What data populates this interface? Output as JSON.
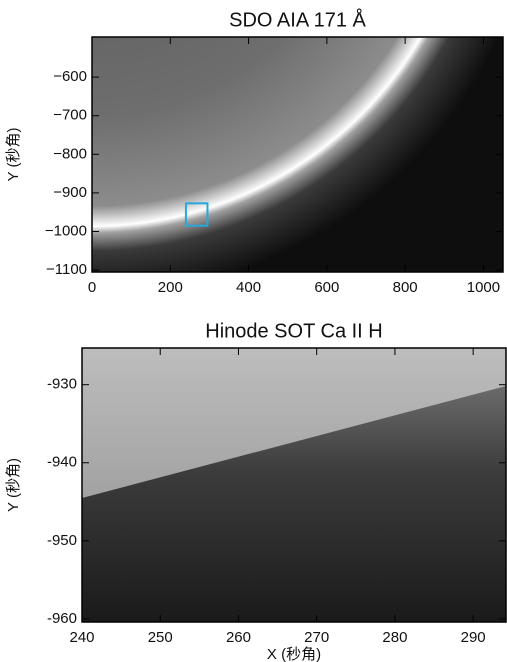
{
  "chart_data": [
    {
      "type": "image",
      "title": "SDO AIA 171 Å",
      "ylabel": "Y (秒角)",
      "xlim": [
        0,
        1050
      ],
      "ylim": [
        -1105,
        -496
      ],
      "xticks": [
        0,
        200,
        400,
        600,
        800,
        1000
      ],
      "yticks": [
        {
          "value": -600,
          "label": "−600"
        },
        {
          "value": -700,
          "label": "−700"
        },
        {
          "value": -800,
          "label": "−800"
        },
        {
          "value": -900,
          "label": "−900"
        },
        {
          "value": -1000,
          "label": "−1000"
        },
        {
          "value": -1100,
          "label": "−1100"
        }
      ],
      "box": {
        "x": [
          240,
          295
        ],
        "y": [
          -985,
          -927
        ],
        "color": "#29a8dc"
      }
    },
    {
      "type": "image",
      "title": "Hinode SOT Ca II H",
      "ylabel": "Y (秒角)",
      "xlabel": "X (秒角)",
      "xlim": [
        240,
        294.2
      ],
      "ylim": [
        -960.4,
        -925.3
      ],
      "xticks": [
        240,
        250,
        260,
        270,
        280,
        290
      ],
      "yticks": [
        -930,
        -940,
        -950,
        -960
      ]
    }
  ]
}
